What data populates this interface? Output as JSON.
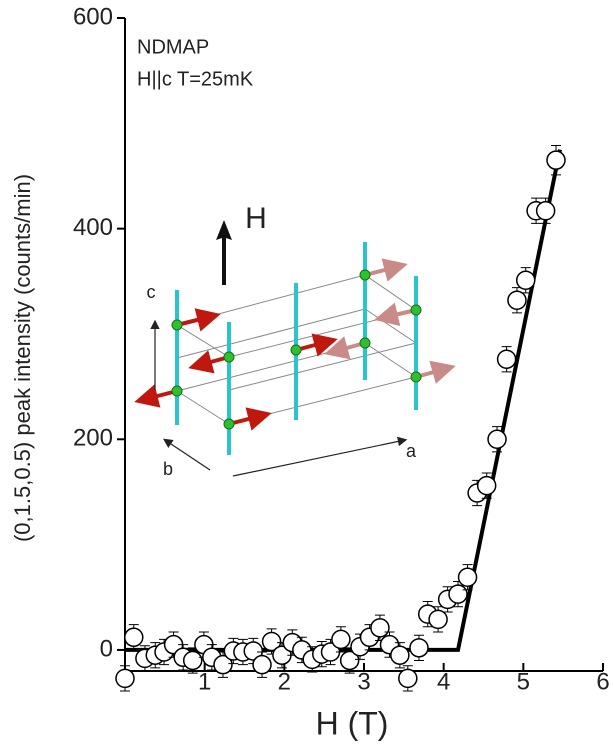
{
  "chart_data": {
    "type": "scatter",
    "x_label": "H (T)",
    "y_label": "(0,1.5,0.5) peak intensity (counts/min)",
    "annotations": [
      "NDMAP",
      "H||c T=25mK"
    ],
    "inset_labels": [
      "H",
      "c",
      "b",
      "a"
    ],
    "xlim": [
      0,
      6
    ],
    "ylim": [
      -20,
      600
    ],
    "xticks": [
      1,
      2,
      3,
      4,
      5,
      6
    ],
    "yticks": [
      0,
      200,
      400,
      600
    ],
    "color": "#000000",
    "points": {
      "x": [
        0,
        0.11,
        0.25,
        0.38,
        0.49,
        0.61,
        0.73,
        0.85,
        0.99,
        1.09,
        1.23,
        1.36,
        1.48,
        1.61,
        1.72,
        1.84,
        1.97,
        2.1,
        2.22,
        2.35,
        2.47,
        2.58,
        2.71,
        2.82,
        2.95,
        3.07,
        3.2,
        3.32,
        3.45,
        3.55,
        3.69,
        3.8,
        3.93,
        4.05,
        4.18,
        4.3,
        4.42,
        4.54,
        4.67,
        4.79,
        4.92,
        5.03,
        5.16,
        5.28,
        5.41
      ],
      "values": [
        -27,
        12,
        -8,
        -5,
        -2,
        5,
        -7,
        -10,
        5,
        -7,
        -14,
        -1,
        -2,
        -1,
        -14,
        8,
        -5,
        7,
        0,
        -9,
        -4,
        -2,
        10,
        -10,
        3,
        12,
        21,
        5,
        -5,
        -27,
        2,
        34,
        29,
        48,
        53,
        69,
        149,
        156,
        200,
        276,
        332,
        351,
        417,
        417,
        465
      ],
      "errors": [
        12,
        12,
        12,
        12,
        12,
        12,
        12,
        12,
        12,
        12,
        12,
        12,
        12,
        12,
        12,
        12,
        12,
        12,
        12,
        12,
        12,
        12,
        12,
        12,
        12,
        12,
        12,
        12,
        12,
        12,
        12,
        12,
        12,
        12,
        12,
        12,
        12,
        12,
        12,
        12,
        12,
        12,
        12,
        12,
        14
      ]
    },
    "fit": {
      "x": [
        0,
        4.18,
        5.46
      ],
      "values": [
        0,
        0,
        475
      ]
    }
  }
}
